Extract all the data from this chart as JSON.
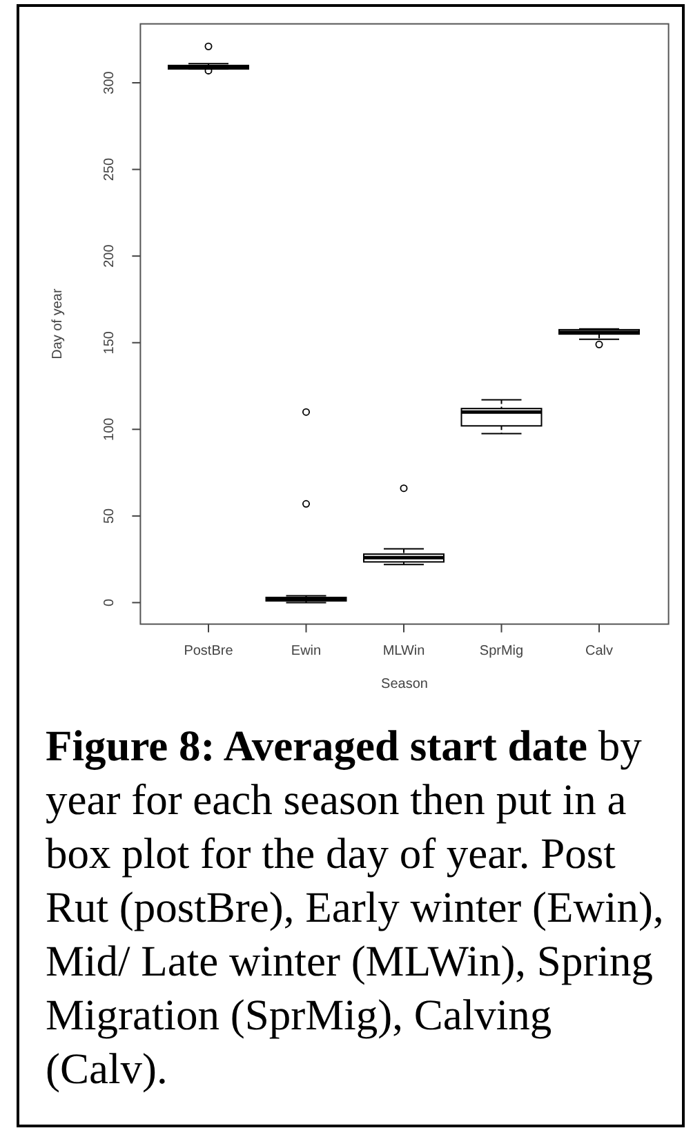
{
  "chart_data": {
    "type": "box",
    "title": "Figure 8: Averaged start date",
    "annotations": [
      "by year for each season then put in a box plot for the day of year. Post Rut (postBre), Early winter (Ewin), Mid/ Late winter (MLWin), Spring Migration (SprMig), Calving (Calv)."
    ],
    "xlabel": "Season",
    "ylabel": "Day of year",
    "categories": [
      "PostBre",
      "Ewin",
      "MLWin",
      "SprMig",
      "Calv"
    ],
    "boxes": [
      {
        "low": 308,
        "q1": 308,
        "median": 309,
        "q3": 310,
        "high": 311,
        "outliers": [
          321,
          307
        ]
      },
      {
        "low": 0,
        "q1": 1,
        "median": 2,
        "q3": 3,
        "high": 4,
        "outliers": [
          110,
          57
        ]
      },
      {
        "low": 22,
        "q1": 23.5,
        "median": 26,
        "q3": 28,
        "high": 31,
        "outliers": [
          66
        ]
      },
      {
        "low": 97.5,
        "q1": 102,
        "median": 110,
        "q3": 112,
        "high": 117
      },
      {
        "low": 152,
        "q1": 155,
        "median": 156,
        "q3": 157.5,
        "high": 158,
        "outliers": [
          149
        ]
      }
    ],
    "color": "#000000",
    "ylim": [
      -12.4,
      334
    ],
    "yticks": [
      0,
      50,
      100,
      150,
      200,
      250,
      300
    ],
    "grid": false
  }
}
